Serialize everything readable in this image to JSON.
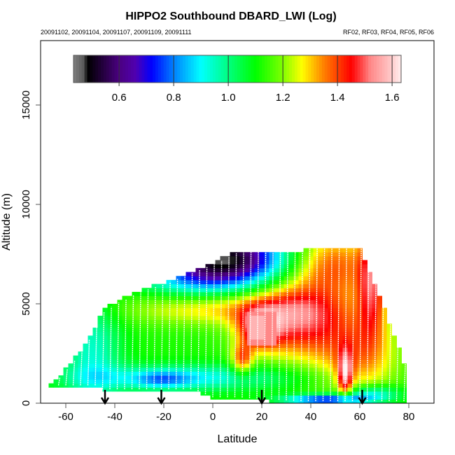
{
  "chart_data": {
    "type": "heatmap",
    "title": "HIPPO2 Southbound DBARD_LWI (Log)",
    "subtitle_left": "20091102, 20091104, 20091107, 20091109, 20091111",
    "subtitle_right": "RF02, RF03, RF04, RF05, RF06",
    "xlabel": "Latitude",
    "ylabel": "Altitude (m)",
    "xlim": [
      -70,
      90
    ],
    "ylim": [
      0,
      18200
    ],
    "xticks": [
      -60,
      -40,
      -20,
      0,
      20,
      40,
      60,
      80
    ],
    "yticks": [
      0,
      5000,
      10000,
      15000
    ],
    "xtick_labels": [
      "-60",
      "-40",
      "-20",
      "0",
      "20",
      "40",
      "60",
      "80"
    ],
    "ytick_labels": [
      "0",
      "5000",
      "10000",
      "15000"
    ],
    "grid": false,
    "colorbar": {
      "position": "top",
      "range": [
        0.433,
        1.633
      ],
      "ticks": [
        0.6,
        0.8,
        1.0,
        1.2,
        1.4,
        1.6
      ],
      "tick_labels": [
        "0.6",
        "0.8",
        "1.0",
        "1.2",
        "1.4",
        "1.6"
      ],
      "stops": [
        {
          "v": 0.433,
          "c": "#7f7f7f"
        },
        {
          "v": 0.47,
          "c": "#5a5a5a"
        },
        {
          "v": 0.485,
          "c": "#000000"
        },
        {
          "v": 0.6,
          "c": "#4a0080"
        },
        {
          "v": 0.66,
          "c": "#5000b0"
        },
        {
          "v": 0.72,
          "c": "#0000ff"
        },
        {
          "v": 0.8,
          "c": "#0080ff"
        },
        {
          "v": 0.9,
          "c": "#00ffff"
        },
        {
          "v": 1.0,
          "c": "#00ff80"
        },
        {
          "v": 1.1,
          "c": "#00ff00"
        },
        {
          "v": 1.2,
          "c": "#80ff00"
        },
        {
          "v": 1.27,
          "c": "#ffff00"
        },
        {
          "v": 1.35,
          "c": "#ff8000"
        },
        {
          "v": 1.45,
          "c": "#ff0000"
        },
        {
          "v": 1.49,
          "c": "#ff4a4a"
        },
        {
          "v": 1.52,
          "c": "#ff8888"
        },
        {
          "v": 1.56,
          "c": "#ffaaaa"
        },
        {
          "v": 1.6,
          "c": "#ffcccc"
        },
        {
          "v": 1.633,
          "c": "#ffeeee"
        }
      ]
    },
    "arrows_latitude": [
      -44,
      -21,
      20,
      61
    ],
    "grid_spec": {
      "lat_start": -66,
      "lat_end": 78,
      "lat_step": 2,
      "alt_step": 200
    },
    "coverage": [
      {
        "lat": -66,
        "top": 1000,
        "bottom": 900
      },
      {
        "lat": -62,
        "top": 1400,
        "bottom": 900
      },
      {
        "lat": -58,
        "top": 2000,
        "bottom": 900
      },
      {
        "lat": -54,
        "top": 2600,
        "bottom": 900
      },
      {
        "lat": -50,
        "top": 3400,
        "bottom": 900
      },
      {
        "lat": -47,
        "top": 4000,
        "bottom": 900
      },
      {
        "lat": -45,
        "top": 4600,
        "bottom": 700
      },
      {
        "lat": -40,
        "top": 5000,
        "bottom": 700
      },
      {
        "lat": -30,
        "top": 5600,
        "bottom": 700
      },
      {
        "lat": -20,
        "top": 6000,
        "bottom": 700
      },
      {
        "lat": -8,
        "top": 6600,
        "bottom": 700
      },
      {
        "lat": 0,
        "top": 7000,
        "bottom": 300
      },
      {
        "lat": 10,
        "top": 7600,
        "bottom": 300
      },
      {
        "lat": 36,
        "top": 7600,
        "bottom": 100
      },
      {
        "lat": 38,
        "top": 7800,
        "bottom": 100
      },
      {
        "lat": 60,
        "top": 7800,
        "bottom": 100
      },
      {
        "lat": 66,
        "top": 6000,
        "bottom": 100
      },
      {
        "lat": 72,
        "top": 4000,
        "bottom": 100
      },
      {
        "lat": 78,
        "top": 2000,
        "bottom": 100
      }
    ],
    "flight_track_latitudes": [
      -63,
      -60,
      -57,
      -54,
      -51,
      -48,
      -45,
      -42,
      -39,
      -36,
      -33,
      -30,
      -27,
      -24,
      -21,
      -18,
      -15,
      -12,
      -9,
      -6,
      -3,
      0,
      3,
      6,
      9,
      12,
      15,
      18,
      21,
      24,
      27,
      30,
      33,
      36,
      39,
      42,
      45,
      48,
      51,
      54,
      57,
      60,
      63,
      66,
      69,
      72,
      75,
      78
    ]
  }
}
